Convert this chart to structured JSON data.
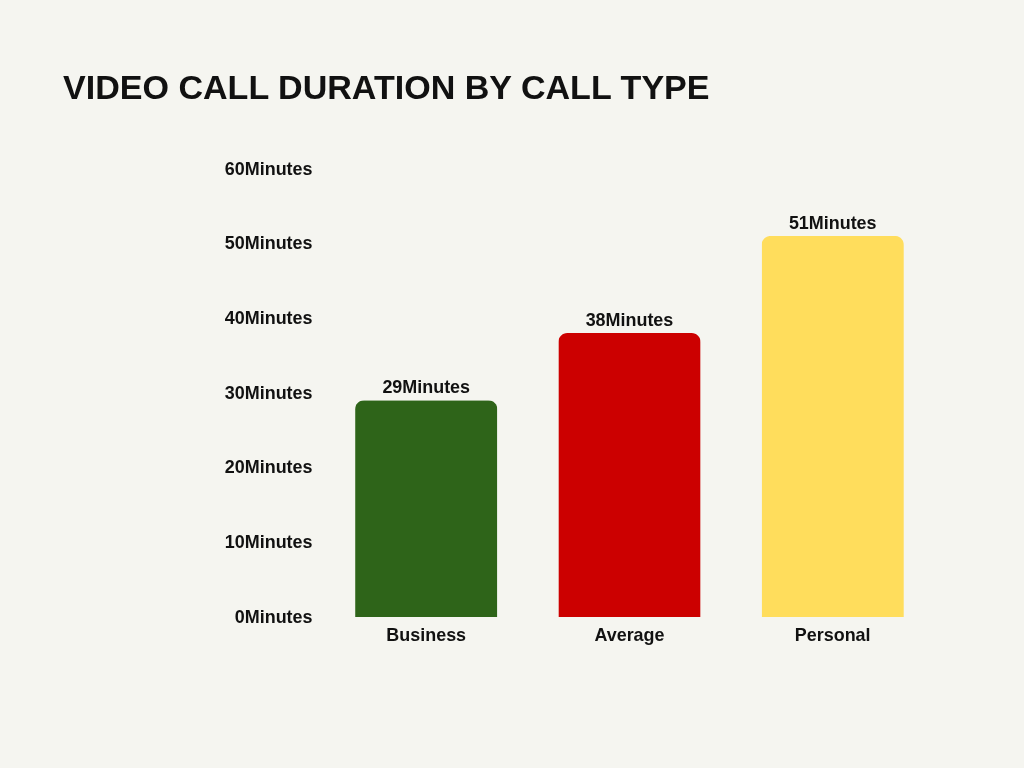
{
  "chart_data": {
    "type": "bar",
    "title": "VIDEO CALL DURATION BY CALL TYPE",
    "categories": [
      "Business",
      "Average",
      "Personal"
    ],
    "values": [
      29,
      38,
      51
    ],
    "colors": [
      "#2e6419",
      "#cc0000",
      "#ffdd5c"
    ],
    "value_labels": [
      "29Minutes",
      "38Minutes",
      "51Minutes"
    ],
    "ylim": [
      0,
      60
    ],
    "yticks": [
      {
        "value": 0,
        "label": "0Minutes"
      },
      {
        "value": 10,
        "label": "10Minutes"
      },
      {
        "value": 20,
        "label": "20Minutes"
      },
      {
        "value": 30,
        "label": "30Minutes"
      },
      {
        "value": 40,
        "label": "40Minutes"
      },
      {
        "value": 50,
        "label": "50Minutes"
      },
      {
        "value": 60,
        "label": "60Minutes"
      }
    ],
    "grid": false,
    "legend": false
  }
}
